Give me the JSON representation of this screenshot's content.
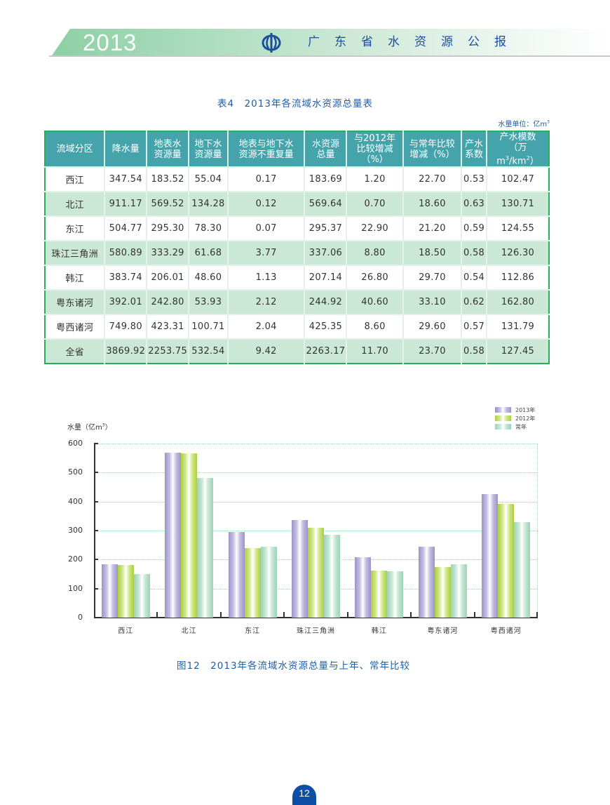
{
  "header": {
    "year": "2013",
    "title": "广东省水资源公报",
    "logo_icon": "water-resources-emblem",
    "accent_color": "#1a4f9c",
    "banner_color": "#8ecfa5"
  },
  "table": {
    "title": "表4　2013年各流域水资源总量表",
    "unit_label": "水量单位：亿m",
    "unit_sup": "3",
    "header_color": "#45a3ab",
    "alt_row_color": "#cbe7d5",
    "border_color": "#2bab5c",
    "columns": [
      "流域分区",
      "降水量",
      "地表水资源量",
      "地下水资源量",
      "地表与地下水资源不重复量",
      "水资源总量",
      "与2012年比较增减（%）",
      "与常年比较增减（%）",
      "产水系数",
      "产水模数（万m³/km²）"
    ],
    "header_lines": {
      "c0": "流域分区",
      "c1": "降水量",
      "c2a": "地表水",
      "c2b": "资源量",
      "c3a": "地下水",
      "c3b": "资源量",
      "c4a": "地表与地下水",
      "c4b": "资源不重复量",
      "c5a": "水资源",
      "c5b": "总量",
      "c6a": "与2012年",
      "c6b": "比较增减",
      "c6c": "（%）",
      "c7a": "与常年比较",
      "c7b": "增减（%）",
      "c8a": "产水",
      "c8b": "系数",
      "c9a": "产水模数",
      "c9b_pre": "（万m",
      "c9b_sup1": "3",
      "c9b_mid": "/km",
      "c9b_sup2": "2",
      "c9b_post": "）"
    },
    "rows": [
      [
        "西江",
        "347.54",
        "183.52",
        "55.04",
        "0.17",
        "183.69",
        "1.20",
        "22.70",
        "0.53",
        "102.47"
      ],
      [
        "北江",
        "911.17",
        "569.52",
        "134.28",
        "0.12",
        "569.64",
        "0.70",
        "18.60",
        "0.63",
        "130.71"
      ],
      [
        "东江",
        "504.77",
        "295.30",
        "78.30",
        "0.07",
        "295.37",
        "22.90",
        "21.20",
        "0.59",
        "124.55"
      ],
      [
        "珠江三角洲",
        "580.89",
        "333.29",
        "61.68",
        "3.77",
        "337.06",
        "8.80",
        "18.50",
        "0.58",
        "126.30"
      ],
      [
        "韩江",
        "383.74",
        "206.01",
        "48.60",
        "1.13",
        "207.14",
        "26.80",
        "29.70",
        "0.54",
        "112.86"
      ],
      [
        "粤东诸河",
        "392.01",
        "242.80",
        "53.93",
        "2.12",
        "244.92",
        "40.60",
        "33.10",
        "0.62",
        "162.80"
      ],
      [
        "粤西诸河",
        "749.80",
        "423.31",
        "100.71",
        "2.04",
        "425.35",
        "8.60",
        "29.60",
        "0.57",
        "131.79"
      ],
      [
        "全省",
        "3869.92",
        "2253.75",
        "532.54",
        "9.42",
        "2263.17",
        "11.70",
        "23.70",
        "0.58",
        "127.45"
      ]
    ]
  },
  "chart": {
    "ylabel_text": "水量（亿m",
    "ylabel_sup": "3",
    "ylabel_close": "）",
    "caption": "图12　2013年各流域水资源总量与上年、常年比较",
    "legend": [
      "2013年",
      "2012年",
      "常年"
    ],
    "series_colors": [
      "#9b94c8",
      "#a9cf3f",
      "#9ed3b6"
    ]
  },
  "chart_data": {
    "type": "bar",
    "title": "图12　2013年各流域水资源总量与上年、常年比较",
    "xlabel": "",
    "ylabel": "水量（亿m³）",
    "ylim": [
      0,
      600
    ],
    "yticks": [
      0,
      100,
      200,
      300,
      400,
      500,
      600
    ],
    "grid": true,
    "legend_position": "top-right",
    "categories": [
      "西江",
      "北江",
      "东江",
      "珠江三角洲",
      "韩江",
      "粤东诸河",
      "粤西诸河"
    ],
    "series": [
      {
        "name": "2013年",
        "values": [
          183.69,
          569.64,
          295.37,
          337.06,
          207.14,
          244.92,
          425.35
        ]
      },
      {
        "name": "2012年",
        "values": [
          181.5,
          565.7,
          240.3,
          309.8,
          163.3,
          174.2,
          391.6
        ]
      },
      {
        "name": "常年",
        "values": [
          149.7,
          480.3,
          243.7,
          284.4,
          159.6,
          184.0,
          328.2
        ]
      }
    ]
  },
  "page": {
    "number": "12",
    "badge_color": "#0d4ea6"
  }
}
